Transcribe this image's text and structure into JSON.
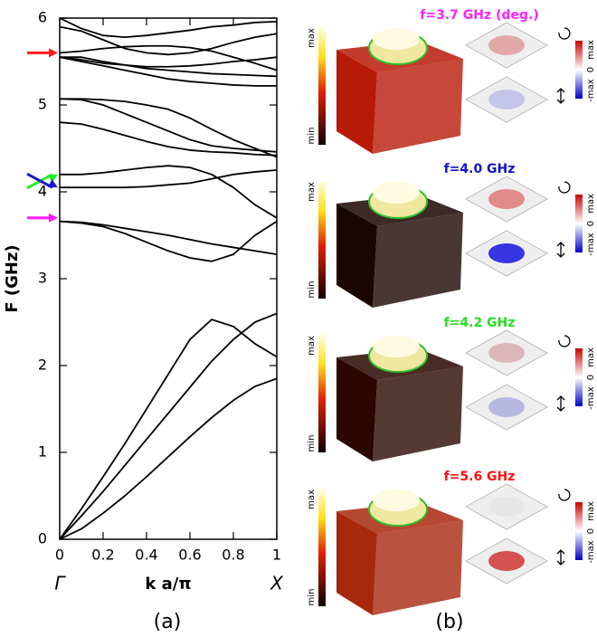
{
  "chart_data": {
    "type": "line",
    "ylabel": "F (GHz)",
    "xlabel": "k a/π",
    "x_start_label": "Γ",
    "x_end_label": "X",
    "x": [
      0,
      0.1,
      0.2,
      0.3,
      0.4,
      0.5,
      0.6,
      0.7,
      0.8,
      0.9,
      1
    ],
    "xlim": [
      0,
      1
    ],
    "xticks": [
      0,
      0.2,
      0.4,
      0.6,
      0.8,
      1
    ],
    "ylim": [
      0,
      6
    ],
    "yticks": [
      0,
      1,
      2,
      3,
      4,
      5,
      6
    ],
    "series": [
      {
        "color": "#000000",
        "values": [
          0,
          0.12,
          0.3,
          0.5,
          0.72,
          0.95,
          1.18,
          1.4,
          1.6,
          1.76,
          1.85
        ]
      },
      {
        "color": "#000000",
        "values": [
          0,
          0.27,
          0.55,
          0.85,
          1.15,
          1.45,
          1.75,
          2.05,
          2.3,
          2.5,
          2.6
        ]
      },
      {
        "color": "#000000",
        "values": [
          0,
          0.35,
          0.72,
          1.1,
          1.5,
          1.9,
          2.3,
          2.53,
          2.45,
          2.25,
          2.1
        ]
      },
      {
        "color": "#000000",
        "values": [
          3.66,
          3.64,
          3.6,
          3.52,
          3.42,
          3.32,
          3.24,
          3.2,
          3.28,
          3.5,
          3.66
        ]
      },
      {
        "color": "#000000",
        "values": [
          3.66,
          3.65,
          3.62,
          3.58,
          3.54,
          3.5,
          3.45,
          3.4,
          3.36,
          3.32,
          3.28
        ]
      },
      {
        "color": "#000000",
        "values": [
          4.05,
          4.05,
          4.05,
          4.05,
          4.06,
          4.08,
          4.1,
          4.15,
          4.2,
          4.23,
          4.25
        ]
      },
      {
        "color": "#000000",
        "values": [
          4.2,
          4.2,
          4.22,
          4.25,
          4.28,
          4.3,
          4.28,
          4.2,
          4.05,
          3.85,
          3.7
        ]
      },
      {
        "color": "#000000",
        "values": [
          4.8,
          4.78,
          4.72,
          4.65,
          4.58,
          4.52,
          4.48,
          4.46,
          4.45,
          4.43,
          4.42
        ]
      },
      {
        "color": "#000000",
        "values": [
          5.07,
          5.06,
          5.0,
          4.9,
          4.8,
          4.7,
          4.6,
          4.53,
          4.5,
          4.48,
          4.46
        ]
      },
      {
        "color": "#000000",
        "values": [
          5.07,
          5.07,
          5.06,
          5.04,
          5.0,
          4.95,
          4.85,
          4.72,
          4.6,
          4.5,
          4.4
        ]
      },
      {
        "color": "#000000",
        "values": [
          5.55,
          5.5,
          5.45,
          5.4,
          5.35,
          5.3,
          5.27,
          5.25,
          5.23,
          5.22,
          5.22
        ]
      },
      {
        "color": "#000000",
        "values": [
          5.55,
          5.55,
          5.5,
          5.46,
          5.42,
          5.4,
          5.38,
          5.36,
          5.35,
          5.34,
          5.33
        ]
      },
      {
        "color": "#000000",
        "values": [
          5.6,
          5.62,
          5.65,
          5.67,
          5.68,
          5.68,
          5.66,
          5.62,
          5.55,
          5.48,
          5.4
        ]
      },
      {
        "color": "#000000",
        "values": [
          5.55,
          5.52,
          5.48,
          5.46,
          5.44,
          5.44,
          5.45,
          5.47,
          5.5,
          5.52,
          5.55
        ]
      },
      {
        "color": "#000000",
        "values": [
          6.0,
          5.88,
          5.8,
          5.78,
          5.8,
          5.83,
          5.86,
          5.9,
          5.92,
          5.95,
          5.96
        ]
      },
      {
        "color": "#000000",
        "values": [
          5.9,
          5.85,
          5.75,
          5.65,
          5.6,
          5.58,
          5.6,
          5.65,
          5.72,
          5.78,
          5.82
        ]
      }
    ],
    "arrows": [
      {
        "value": 5.6,
        "color": "#ff1a1a"
      },
      {
        "value": 4.2,
        "color": "#22ee22"
      },
      {
        "value": 4.05,
        "color": "#1a1acc"
      },
      {
        "value": 3.7,
        "color": "#ff1aff"
      }
    ]
  },
  "panels": [
    {
      "title": "f=3.7 GHz (deg.)",
      "color": "#ff22ff"
    },
    {
      "title": "f=4.0 GHz",
      "color": "#1111cc"
    },
    {
      "title": "f=4.2 GHz",
      "color": "#22dd22"
    },
    {
      "title": "f=5.6 GHz",
      "color": "#ff1111"
    }
  ],
  "colorbar": {
    "max": "max",
    "min": "min",
    "zero": "0",
    "neg": "-max"
  },
  "captions": [
    "(a)",
    "(b)"
  ]
}
